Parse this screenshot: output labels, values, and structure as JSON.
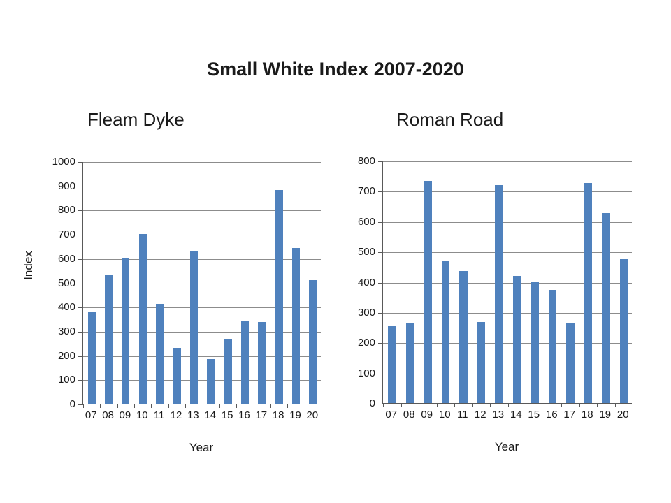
{
  "slide_title": "Small White Index 2007-2020",
  "colors": {
    "bar": "#4f81bd",
    "gridline": "#8c8c8c",
    "axis": "#595959",
    "text": "#1a1a1a",
    "background": "#ffffff"
  },
  "chart_data": [
    {
      "type": "bar",
      "title": "Fleam Dyke",
      "xlabel": "Year",
      "ylabel": "Index",
      "categories": [
        "07",
        "08",
        "09",
        "10",
        "11",
        "12",
        "13",
        "14",
        "15",
        "16",
        "17",
        "18",
        "19",
        "20"
      ],
      "values": [
        378,
        530,
        600,
        700,
        412,
        230,
        630,
        185,
        268,
        340,
        336,
        883,
        642,
        510
      ],
      "ylim": [
        0,
        1000
      ],
      "ytick_step": 100,
      "grid": true,
      "legend": "none",
      "bar_color": "#4f81bd"
    },
    {
      "type": "bar",
      "title": "Roman Road",
      "xlabel": "Year",
      "ylabel": "",
      "categories": [
        "07",
        "08",
        "09",
        "10",
        "11",
        "12",
        "13",
        "14",
        "15",
        "16",
        "17",
        "18",
        "19",
        "20"
      ],
      "values": [
        253,
        262,
        734,
        469,
        437,
        268,
        719,
        420,
        400,
        373,
        266,
        727,
        628,
        476
      ],
      "ylim": [
        0,
        800
      ],
      "ytick_step": 100,
      "grid": true,
      "legend": "none",
      "bar_color": "#4f81bd"
    }
  ]
}
